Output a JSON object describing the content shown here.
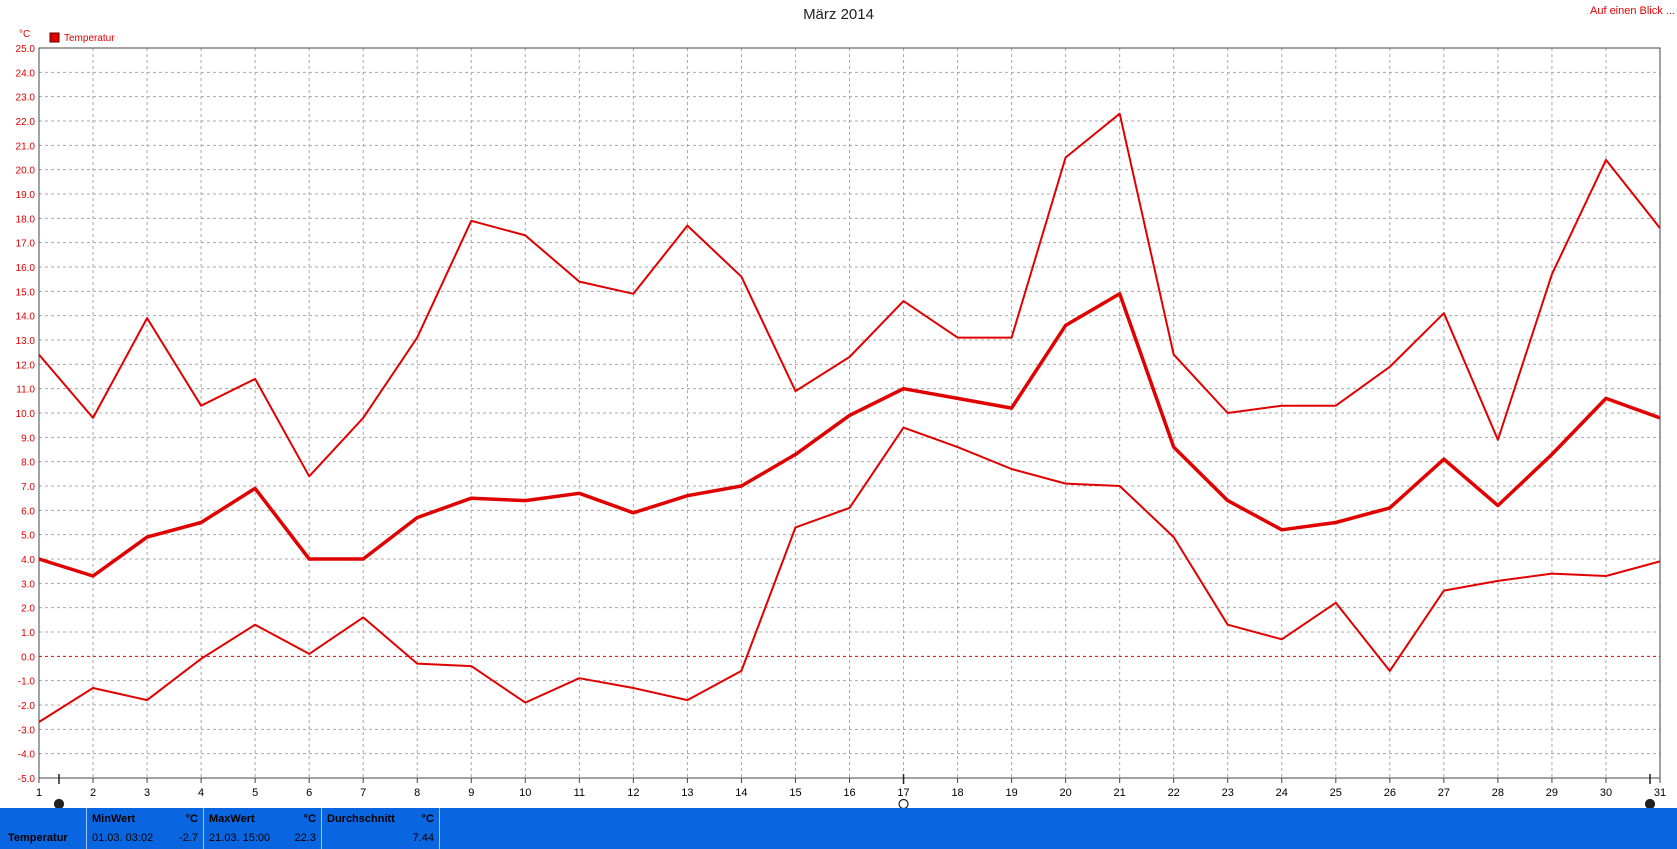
{
  "header": {
    "title": "März 2014",
    "link_label": "Auf einen Blick ..."
  },
  "chart_data": {
    "type": "line",
    "title": "März 2014",
    "ylabel": "°C",
    "ylim": [
      -5,
      25
    ],
    "yticks": [
      "25.0",
      "24.0",
      "23.0",
      "22.0",
      "21.0",
      "20.0",
      "19.0",
      "18.0",
      "17.0",
      "16.0",
      "15.0",
      "14.0",
      "13.0",
      "12.0",
      "11.0",
      "10.0",
      "9.0",
      "8.0",
      "7.0",
      "6.0",
      "5.0",
      "4.0",
      "3.0",
      "2.0",
      "1.0",
      "0.0",
      "-1.0",
      "-2.0",
      "-3.0",
      "-4.0",
      "-5.0"
    ],
    "x": [
      1,
      2,
      3,
      4,
      5,
      6,
      7,
      8,
      9,
      10,
      11,
      12,
      13,
      14,
      15,
      16,
      17,
      18,
      19,
      20,
      21,
      22,
      23,
      24,
      25,
      26,
      27,
      28,
      29,
      30,
      31
    ],
    "legend": {
      "label": "Temperatur",
      "color": "#e00000",
      "position": "top-left"
    },
    "grid": true,
    "series": [
      {
        "kind": "max",
        "values": [
          12.4,
          9.8,
          13.9,
          10.3,
          11.4,
          7.4,
          9.8,
          13.1,
          17.9,
          17.3,
          15.4,
          14.9,
          17.7,
          15.6,
          10.9,
          12.3,
          14.6,
          13.1,
          13.1,
          20.5,
          22.3,
          12.4,
          10.0,
          10.3,
          10.3,
          11.9,
          14.1,
          8.9,
          15.7,
          20.4,
          17.6
        ]
      },
      {
        "kind": "avg",
        "values": [
          4.0,
          3.3,
          4.9,
          5.5,
          6.9,
          4.0,
          4.0,
          5.7,
          6.5,
          6.4,
          6.7,
          5.9,
          6.6,
          7.0,
          8.3,
          9.9,
          11.0,
          10.6,
          10.2,
          13.6,
          14.9,
          8.6,
          6.4,
          5.2,
          5.5,
          6.1,
          8.1,
          6.2,
          8.3,
          10.6,
          9.8
        ]
      },
      {
        "kind": "min",
        "values": [
          -2.7,
          -1.3,
          -1.8,
          -0.1,
          1.3,
          0.1,
          1.6,
          -0.3,
          -0.4,
          -1.9,
          -0.9,
          -1.3,
          -1.8,
          -0.6,
          5.3,
          6.1,
          9.4,
          8.6,
          7.7,
          7.1,
          7.0,
          4.9,
          1.3,
          0.7,
          2.2,
          -0.6,
          2.7,
          3.1,
          3.4,
          3.3,
          3.9
        ]
      }
    ]
  },
  "stats": {
    "series_label": "Temperatur",
    "min_label": "MinWert",
    "min_unit": "°C",
    "min_date": "01.03.  03:02",
    "min_value": "-2.7",
    "max_label": "MaxWert",
    "max_unit": "°C",
    "max_date": "21.03.  15:00",
    "max_value": "22.3",
    "avg_label": "Durchschnitt",
    "avg_unit": "°C",
    "avg_value": "7.44"
  }
}
